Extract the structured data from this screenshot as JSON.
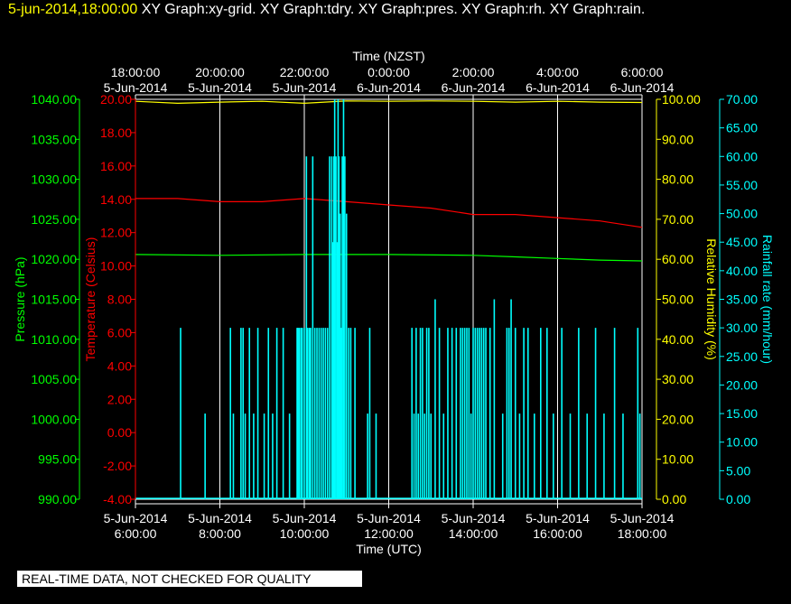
{
  "header": {
    "timestamp": "5-jun-2014,18:00:00",
    "graphs": "XY Graph:xy-grid.  XY Graph:tdry.  XY Graph:pres.  XY Graph:rh.  XY Graph:rain."
  },
  "notice": "REAL-TIME DATA, NOT CHECKED FOR QUALITY",
  "chart_data": {
    "type": "line",
    "x_unit": "hours (UTC) on 5-Jun-2014",
    "xlim": [
      6,
      18
    ],
    "grid": true,
    "top_axis": {
      "title": "Time (NZST)",
      "ticks": [
        {
          "time": "18:00:00",
          "date": "5-Jun-2014"
        },
        {
          "time": "20:00:00",
          "date": "5-Jun-2014"
        },
        {
          "time": "22:00:00",
          "date": "5-Jun-2014"
        },
        {
          "time": "0:00:00",
          "date": "6-Jun-2014"
        },
        {
          "time": "2:00:00",
          "date": "6-Jun-2014"
        },
        {
          "time": "4:00:00",
          "date": "6-Jun-2014"
        },
        {
          "time": "6:00:00",
          "date": "6-Jun-2014"
        }
      ]
    },
    "bottom_axis": {
      "title": "Time (UTC)",
      "ticks": [
        {
          "time": "6:00:00",
          "date": "5-Jun-2014"
        },
        {
          "time": "8:00:00",
          "date": "5-Jun-2014"
        },
        {
          "time": "10:00:00",
          "date": "5-Jun-2014"
        },
        {
          "time": "12:00:00",
          "date": "5-Jun-2014"
        },
        {
          "time": "14:00:00",
          "date": "5-Jun-2014"
        },
        {
          "time": "16:00:00",
          "date": "5-Jun-2014"
        },
        {
          "time": "18:00:00",
          "date": "5-Jun-2014"
        }
      ]
    },
    "axes": {
      "pressure": {
        "label": "Pressure (hPa)",
        "ylim": [
          990,
          1040
        ],
        "color": "#00ff00",
        "ticks": [
          "1040.00",
          "1035.00",
          "1030.00",
          "1025.00",
          "1020.00",
          "1015.00",
          "1010.00",
          "1005.00",
          "1000.00",
          "995.00",
          "990.00"
        ]
      },
      "temperature": {
        "label": "Temperature (Celsius)",
        "ylim": [
          -5,
          20
        ],
        "color": "#ff0000",
        "ticks": [
          "20.00",
          "18.00",
          "16.00",
          "14.00",
          "12.00",
          "10.00",
          "8.00",
          "6.00",
          "4.00",
          "2.00",
          "0.00",
          "-2.00",
          "-4.00"
        ]
      },
      "humidity": {
        "label": "Relative Humidity (%)",
        "ylim": [
          0,
          100
        ],
        "color": "#ffff00",
        "ticks": [
          "100.00",
          "90.00",
          "80.00",
          "70.00",
          "60.00",
          "50.00",
          "40.00",
          "30.00",
          "20.00",
          "10.00",
          "0.00"
        ]
      },
      "rain": {
        "label": "Rainfall rate (mm/hour)",
        "ylim": [
          0,
          70
        ],
        "color": "#00ffff",
        "ticks": [
          "70.00",
          "65.00",
          "60.00",
          "55.00",
          "50.00",
          "45.00",
          "40.00",
          "35.00",
          "30.00",
          "25.00",
          "20.00",
          "15.00",
          "10.00",
          "5.00",
          "0.00"
        ]
      }
    },
    "series": [
      {
        "name": "Temperature",
        "axis": "temperature",
        "color": "#ff0000",
        "x": [
          6.0,
          7.0,
          8.0,
          9.0,
          10.0,
          11.0,
          12.0,
          13.0,
          14.0,
          15.0,
          16.0,
          17.0,
          18.0
        ],
        "y": [
          13.8,
          13.8,
          13.6,
          13.6,
          13.8,
          13.6,
          13.4,
          13.2,
          12.8,
          12.8,
          12.6,
          12.4,
          12.0
        ]
      },
      {
        "name": "Pressure",
        "axis": "pressure",
        "color": "#00ff00",
        "x": [
          6.0,
          8.0,
          10.0,
          12.0,
          14.0,
          15.0,
          16.0,
          17.0,
          18.0
        ],
        "y": [
          1020.6,
          1020.5,
          1020.6,
          1020.6,
          1020.5,
          1020.3,
          1020.1,
          1019.9,
          1019.8
        ]
      },
      {
        "name": "Relative Humidity",
        "axis": "humidity",
        "color": "#ffff00",
        "x": [
          6.0,
          7.0,
          8.0,
          9.0,
          10.0,
          11.0,
          12.0,
          13.0,
          14.0,
          15.0,
          16.0,
          17.0,
          18.0
        ],
        "y": [
          99.5,
          99.0,
          99.3,
          99.5,
          99.0,
          99.6,
          99.5,
          99.6,
          99.5,
          99.3,
          99.5,
          99.3,
          99.2
        ]
      },
      {
        "name": "Rainfall rate",
        "axis": "rain",
        "color": "#00ffff",
        "kind": "bars",
        "x": [
          7.07,
          7.65,
          8.25,
          8.32,
          8.5,
          8.55,
          8.6,
          8.7,
          8.8,
          8.9,
          9.05,
          9.15,
          9.25,
          9.35,
          9.5,
          9.65,
          9.83,
          9.85,
          9.88,
          9.92,
          9.95,
          10.0,
          10.05,
          10.08,
          10.12,
          10.15,
          10.2,
          10.25,
          10.3,
          10.35,
          10.4,
          10.45,
          10.5,
          10.55,
          10.6,
          10.65,
          10.68,
          10.7,
          10.72,
          10.75,
          10.78,
          10.8,
          10.82,
          10.85,
          10.88,
          10.9,
          10.93,
          10.96,
          11.0,
          11.05,
          11.1,
          11.2,
          11.5,
          11.55,
          11.7,
          12.55,
          12.6,
          12.65,
          12.7,
          12.75,
          12.8,
          12.85,
          12.9,
          12.95,
          13.0,
          13.1,
          13.2,
          13.3,
          13.4,
          13.5,
          13.6,
          13.7,
          13.75,
          13.8,
          13.85,
          13.9,
          13.95,
          14.0,
          14.05,
          14.1,
          14.15,
          14.2,
          14.25,
          14.3,
          14.4,
          14.5,
          14.7,
          14.8,
          14.85,
          14.9,
          15.0,
          15.1,
          15.2,
          15.3,
          15.45,
          15.6,
          15.75,
          15.9,
          16.1,
          16.3,
          16.5,
          16.7,
          16.9,
          17.1,
          17.35,
          17.55,
          17.9,
          17.95
        ],
        "y": [
          30,
          15,
          30,
          15,
          30,
          30,
          15,
          30,
          15,
          30,
          15,
          30,
          15,
          30,
          30,
          15,
          30,
          30,
          30,
          30,
          30,
          30,
          60,
          30,
          30,
          30,
          60,
          30,
          30,
          30,
          30,
          30,
          30,
          30,
          60,
          60,
          45,
          60,
          70,
          60,
          45,
          70,
          60,
          50,
          30,
          60,
          70,
          60,
          50,
          30,
          30,
          30,
          15,
          30,
          15,
          30,
          15,
          30,
          15,
          30,
          30,
          15,
          30,
          30,
          15,
          35,
          30,
          15,
          30,
          30,
          30,
          30,
          30,
          30,
          30,
          30,
          15,
          30,
          30,
          30,
          30,
          30,
          30,
          30,
          30,
          35,
          15,
          30,
          30,
          35,
          30,
          15,
          30,
          30,
          15,
          30,
          30,
          15,
          30,
          15,
          30,
          15,
          30,
          15,
          30,
          15,
          30,
          15
        ]
      }
    ]
  }
}
